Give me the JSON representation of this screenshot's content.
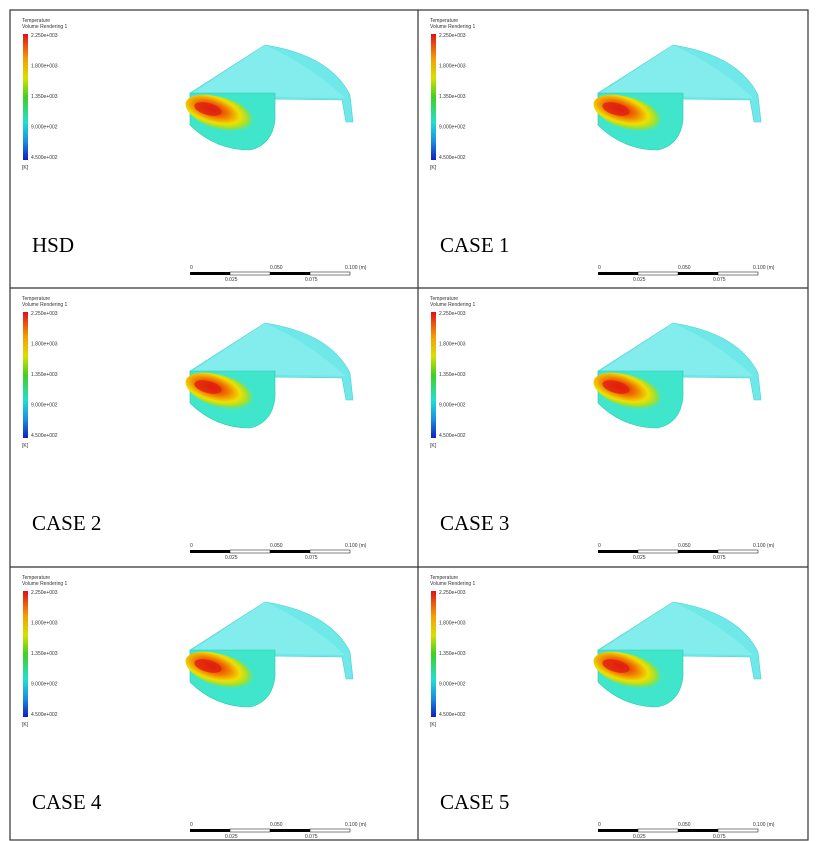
{
  "legend": {
    "title": "Temperature",
    "subtitle": "Volume Rendering 1",
    "ticks": [
      "2.250e+003",
      "1.800e+003",
      "1.350e+003",
      "9.000e+002",
      "4.500e+002"
    ],
    "unit": "[K]"
  },
  "scale_bar": {
    "labels": [
      "0",
      "0.050",
      "0.100 (m)"
    ],
    "sublabels": [
      "0.025",
      "0.075"
    ]
  },
  "panels": [
    {
      "label": "HSD"
    },
    {
      "label": "CASE 1"
    },
    {
      "label": "CASE 2"
    },
    {
      "label": "CASE 3"
    },
    {
      "label": "CASE 4"
    },
    {
      "label": "CASE 5"
    }
  ]
}
